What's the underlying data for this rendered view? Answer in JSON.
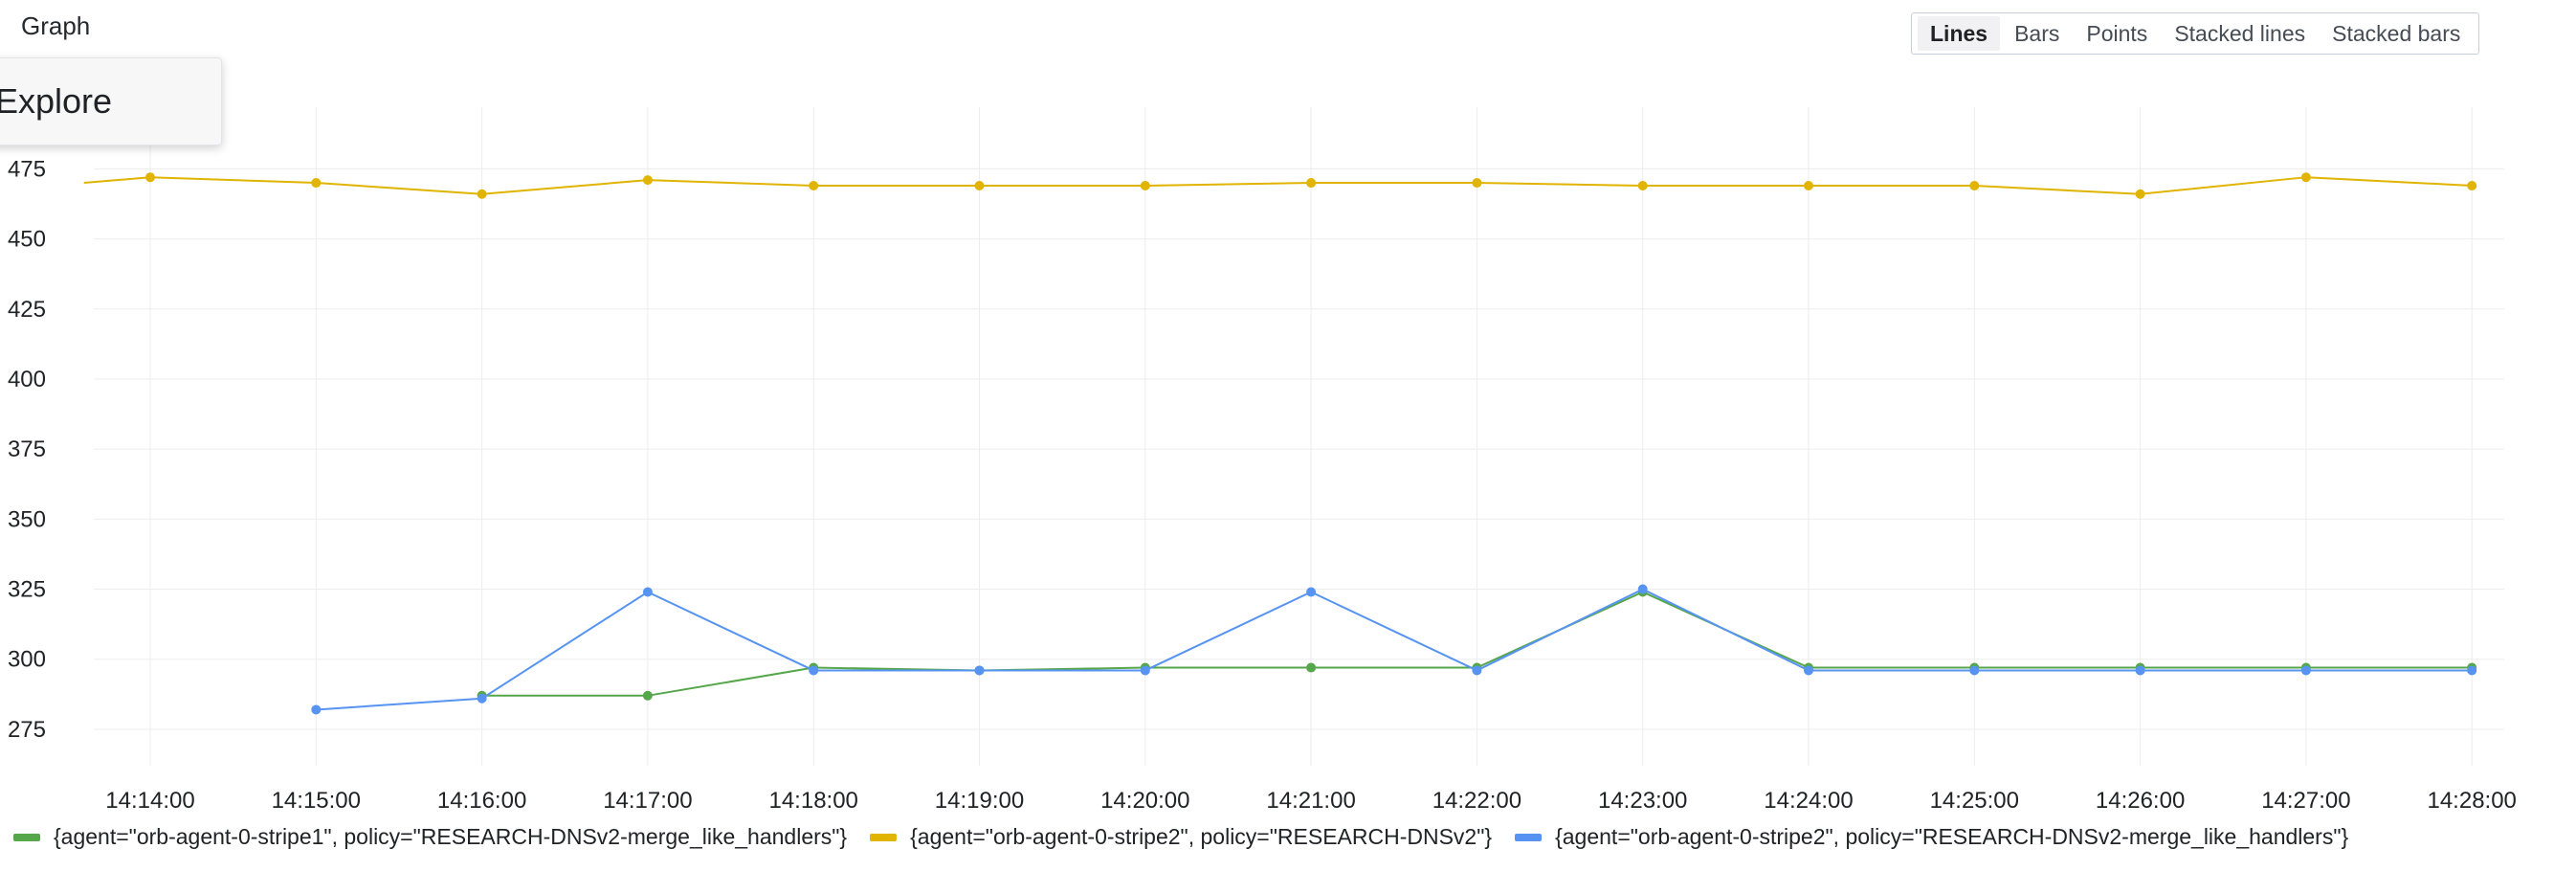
{
  "panel": {
    "title": "Graph"
  },
  "viz_switch": {
    "options": [
      {
        "label": "Lines",
        "active": true
      },
      {
        "label": "Bars",
        "active": false
      },
      {
        "label": "Points",
        "active": false
      },
      {
        "label": "Stacked lines",
        "active": false
      },
      {
        "label": "Stacked bars",
        "active": false
      }
    ]
  },
  "tooltip": {
    "label": "Explore"
  },
  "chart_data": {
    "type": "line",
    "title": "",
    "xlabel": "",
    "ylabel": "",
    "x": [
      "14:14:00",
      "14:15:00",
      "14:16:00",
      "14:17:00",
      "14:18:00",
      "14:19:00",
      "14:20:00",
      "14:21:00",
      "14:22:00",
      "14:23:00",
      "14:24:00",
      "14:25:00",
      "14:26:00",
      "14:27:00",
      "14:28:00"
    ],
    "y_ticks": [
      275,
      300,
      325,
      350,
      375,
      400,
      425,
      450,
      475
    ],
    "ylim": [
      262,
      497
    ],
    "x_range": [
      "14:13:25",
      "14:28:10"
    ],
    "grid": true,
    "legend_position": "bottom",
    "series": [
      {
        "name": "{agent=\"orb-agent-0-stripe1\", policy=\"RESEARCH-DNSv2-merge_like_handlers\"}",
        "color": "#56a64b",
        "points": [
          [
            2,
            287
          ],
          [
            3,
            287
          ],
          [
            4,
            297
          ],
          [
            5,
            296
          ],
          [
            6,
            297
          ],
          [
            7,
            297
          ],
          [
            8,
            297
          ],
          [
            9,
            324
          ],
          [
            10,
            297
          ],
          [
            11,
            297
          ],
          [
            12,
            297
          ],
          [
            13,
            297
          ],
          [
            14,
            297
          ]
        ]
      },
      {
        "name": "{agent=\"orb-agent-0-stripe2\", policy=\"RESEARCH-DNSv2\"}",
        "color": "#e0b400",
        "points": [
          [
            -0.4,
            470
          ],
          [
            0,
            472
          ],
          [
            1,
            470
          ],
          [
            2,
            466
          ],
          [
            3,
            471
          ],
          [
            4,
            469
          ],
          [
            5,
            469
          ],
          [
            6,
            469
          ],
          [
            7,
            470
          ],
          [
            8,
            470
          ],
          [
            9,
            469
          ],
          [
            10,
            469
          ],
          [
            11,
            469
          ],
          [
            12,
            466
          ],
          [
            13,
            472
          ],
          [
            14,
            469
          ]
        ]
      },
      {
        "name": "{agent=\"orb-agent-0-stripe2\", policy=\"RESEARCH-DNSv2-merge_like_handlers\"}",
        "color": "#5794f2",
        "points": [
          [
            1,
            282
          ],
          [
            2,
            286
          ],
          [
            3,
            324
          ],
          [
            4,
            296
          ],
          [
            5,
            296
          ],
          [
            6,
            296
          ],
          [
            7,
            324
          ],
          [
            8,
            296
          ],
          [
            9,
            325
          ],
          [
            10,
            296
          ],
          [
            11,
            296
          ],
          [
            12,
            296
          ],
          [
            13,
            296
          ],
          [
            14,
            296
          ]
        ]
      }
    ]
  }
}
